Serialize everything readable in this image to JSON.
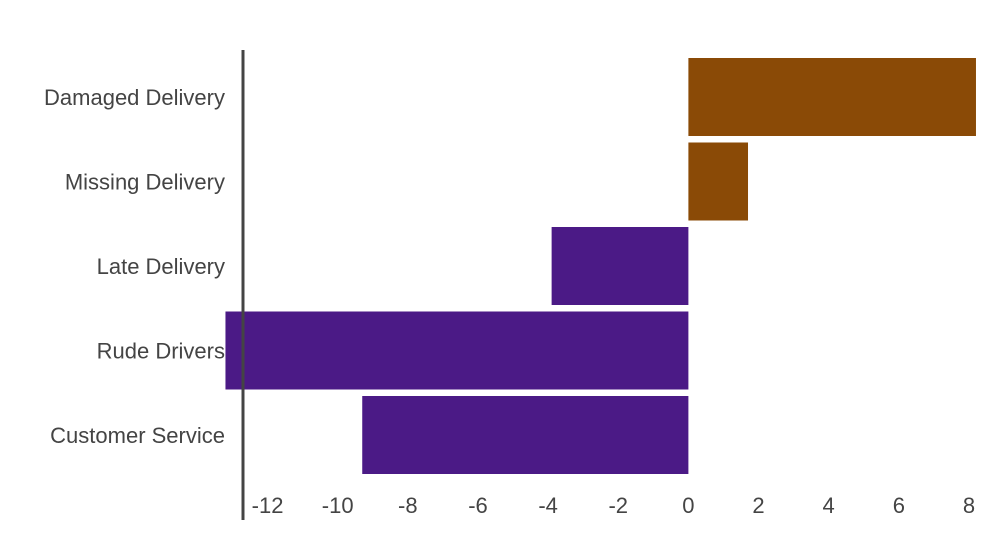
{
  "chart_data": {
    "type": "bar",
    "orientation": "horizontal",
    "title": "",
    "xlabel": "",
    "ylabel": "",
    "categories": [
      "Damaged Delivery",
      "Missing Delivery",
      "Late Delivery",
      "Rude Drivers",
      "Customer Service"
    ],
    "values": [
      8.2,
      1.7,
      -3.9,
      -13.2,
      -9.3
    ],
    "xlim": [
      -12.7,
      8.6
    ],
    "xticks": [
      "-12",
      "-10",
      "-8",
      "-6",
      "-4",
      "-2",
      "0",
      "2",
      "4",
      "6",
      "8"
    ],
    "grid": false,
    "legend": "none",
    "colors": {
      "positive": "#8a4a06",
      "negative": "#4b1a86",
      "axis": "#444444",
      "label_text": "#444444"
    }
  }
}
